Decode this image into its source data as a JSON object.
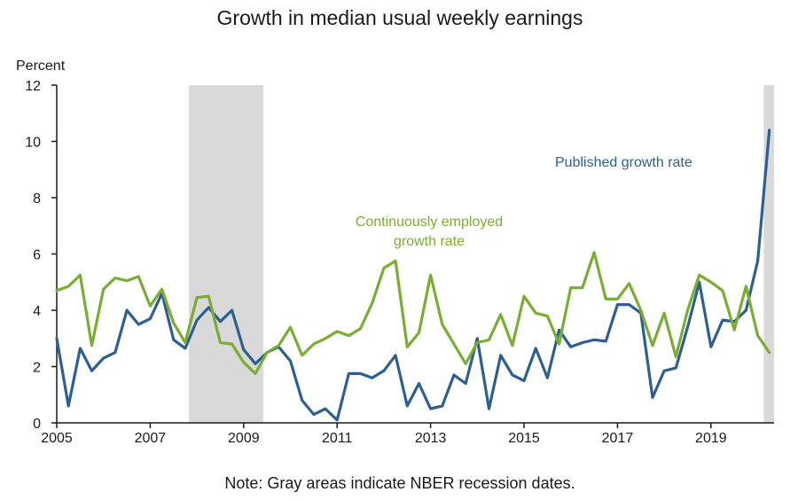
{
  "chart_data": {
    "type": "line",
    "title": "Growth in median usual weekly earnings",
    "y_unit_label": "Percent",
    "note": "Note: Gray areas indicate NBER recession dates.",
    "ylim": [
      0,
      12
    ],
    "xlim": [
      2005.0,
      2020.35
    ],
    "y_ticks": [
      "0",
      "2",
      "4",
      "6",
      "8",
      "10",
      "12"
    ],
    "x_ticks": [
      "2005",
      "2007",
      "2009",
      "2011",
      "2013",
      "2015",
      "2017",
      "2019"
    ],
    "recessions": [
      {
        "start": 2007.83,
        "end": 2009.42
      },
      {
        "start": 2020.13,
        "end": 2020.35
      }
    ],
    "annotations": {
      "published": "Published growth rate",
      "continuous_line1": "Continuously employed",
      "continuous_line2": "growth rate"
    },
    "colors": {
      "published": "#2e5f91",
      "continuous": "#7aad34",
      "recession": "#d9d9d9"
    },
    "series": [
      {
        "name": "Published growth rate",
        "color": "#2e5f91",
        "points": [
          [
            2005.0,
            3.0
          ],
          [
            2005.25,
            0.6
          ],
          [
            2005.5,
            2.65
          ],
          [
            2005.75,
            1.85
          ],
          [
            2006.0,
            2.3
          ],
          [
            2006.25,
            2.5
          ],
          [
            2006.5,
            4.0
          ],
          [
            2006.75,
            3.5
          ],
          [
            2007.0,
            3.7
          ],
          [
            2007.25,
            4.6
          ],
          [
            2007.5,
            2.95
          ],
          [
            2007.75,
            2.65
          ],
          [
            2008.0,
            3.65
          ],
          [
            2008.25,
            4.1
          ],
          [
            2008.5,
            3.6
          ],
          [
            2008.75,
            4.0
          ],
          [
            2009.0,
            2.6
          ],
          [
            2009.25,
            2.1
          ],
          [
            2009.5,
            2.5
          ],
          [
            2009.75,
            2.7
          ],
          [
            2010.0,
            2.2
          ],
          [
            2010.25,
            0.8
          ],
          [
            2010.5,
            0.3
          ],
          [
            2010.75,
            0.5
          ],
          [
            2011.0,
            0.1
          ],
          [
            2011.25,
            1.75
          ],
          [
            2011.5,
            1.75
          ],
          [
            2011.75,
            1.6
          ],
          [
            2012.0,
            1.85
          ],
          [
            2012.25,
            2.4
          ],
          [
            2012.5,
            0.6
          ],
          [
            2012.75,
            1.4
          ],
          [
            2013.0,
            0.5
          ],
          [
            2013.25,
            0.6
          ],
          [
            2013.5,
            1.7
          ],
          [
            2013.75,
            1.4
          ],
          [
            2014.0,
            3.0
          ],
          [
            2014.25,
            0.5
          ],
          [
            2014.5,
            2.4
          ],
          [
            2014.75,
            1.7
          ],
          [
            2015.0,
            1.5
          ],
          [
            2015.25,
            2.65
          ],
          [
            2015.5,
            1.6
          ],
          [
            2015.75,
            3.3
          ],
          [
            2016.0,
            2.7
          ],
          [
            2016.25,
            2.85
          ],
          [
            2016.5,
            2.95
          ],
          [
            2016.75,
            2.9
          ],
          [
            2017.0,
            4.2
          ],
          [
            2017.25,
            4.2
          ],
          [
            2017.5,
            3.9
          ],
          [
            2017.75,
            0.9
          ],
          [
            2018.0,
            1.85
          ],
          [
            2018.25,
            1.95
          ],
          [
            2018.5,
            3.4
          ],
          [
            2018.75,
            5.0
          ],
          [
            2019.0,
            2.7
          ],
          [
            2019.25,
            3.65
          ],
          [
            2019.5,
            3.6
          ],
          [
            2019.75,
            4.0
          ],
          [
            2020.0,
            5.75
          ],
          [
            2020.25,
            10.4
          ]
        ]
      },
      {
        "name": "Continuously employed growth rate",
        "color": "#7aad34",
        "points": [
          [
            2005.0,
            4.7
          ],
          [
            2005.25,
            4.85
          ],
          [
            2005.5,
            5.25
          ],
          [
            2005.75,
            2.75
          ],
          [
            2006.0,
            4.75
          ],
          [
            2006.25,
            5.15
          ],
          [
            2006.5,
            5.05
          ],
          [
            2006.75,
            5.2
          ],
          [
            2007.0,
            4.15
          ],
          [
            2007.25,
            4.75
          ],
          [
            2007.5,
            3.55
          ],
          [
            2007.75,
            2.85
          ],
          [
            2008.0,
            4.45
          ],
          [
            2008.25,
            4.5
          ],
          [
            2008.5,
            2.85
          ],
          [
            2008.75,
            2.8
          ],
          [
            2009.0,
            2.15
          ],
          [
            2009.25,
            1.75
          ],
          [
            2009.5,
            2.5
          ],
          [
            2009.75,
            2.75
          ],
          [
            2010.0,
            3.4
          ],
          [
            2010.25,
            2.4
          ],
          [
            2010.5,
            2.8
          ],
          [
            2010.75,
            3.0
          ],
          [
            2011.0,
            3.25
          ],
          [
            2011.25,
            3.1
          ],
          [
            2011.5,
            3.35
          ],
          [
            2011.75,
            4.25
          ],
          [
            2012.0,
            5.5
          ],
          [
            2012.25,
            5.75
          ],
          [
            2012.5,
            2.7
          ],
          [
            2012.75,
            3.2
          ],
          [
            2013.0,
            5.25
          ],
          [
            2013.25,
            3.5
          ],
          [
            2013.5,
            2.8
          ],
          [
            2013.75,
            2.1
          ],
          [
            2014.0,
            2.85
          ],
          [
            2014.25,
            2.95
          ],
          [
            2014.5,
            3.85
          ],
          [
            2014.75,
            2.75
          ],
          [
            2015.0,
            4.5
          ],
          [
            2015.25,
            3.9
          ],
          [
            2015.5,
            3.8
          ],
          [
            2015.75,
            2.8
          ],
          [
            2016.0,
            4.8
          ],
          [
            2016.25,
            4.8
          ],
          [
            2016.5,
            6.05
          ],
          [
            2016.75,
            4.4
          ],
          [
            2017.0,
            4.4
          ],
          [
            2017.25,
            4.95
          ],
          [
            2017.5,
            4.0
          ],
          [
            2017.75,
            2.75
          ],
          [
            2018.0,
            3.9
          ],
          [
            2018.25,
            2.35
          ],
          [
            2018.5,
            4.0
          ],
          [
            2018.75,
            5.25
          ],
          [
            2019.0,
            5.0
          ],
          [
            2019.25,
            4.7
          ],
          [
            2019.5,
            3.3
          ],
          [
            2019.75,
            4.85
          ],
          [
            2020.0,
            3.1
          ],
          [
            2020.25,
            2.5
          ]
        ]
      }
    ]
  }
}
